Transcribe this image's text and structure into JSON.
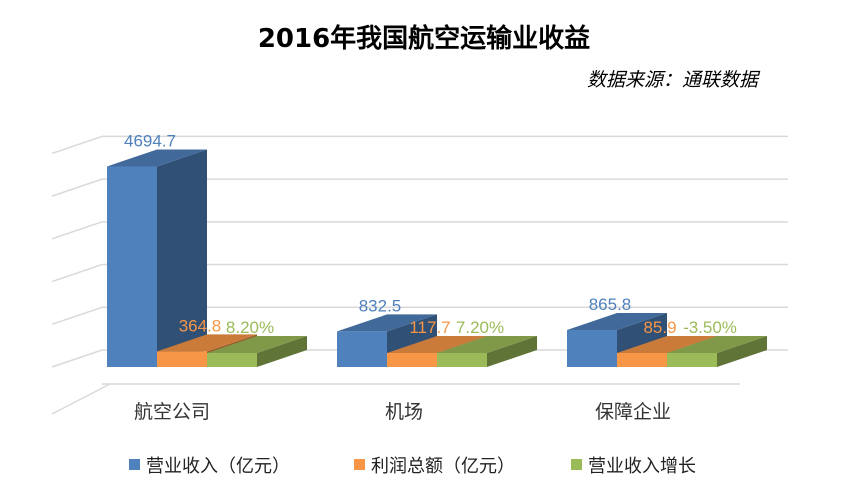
{
  "chart_data": {
    "type": "bar",
    "title": "2016年我国航空运输业收益",
    "source": "数据来源：通联数据",
    "categories": [
      "航空公司",
      "机场",
      "保障企业"
    ],
    "series": [
      {
        "name": "营业收入（亿元）",
        "values": [
          4694.7,
          832.5,
          865.8
        ],
        "labels": [
          "4694.7",
          "832.5",
          "865.8"
        ],
        "color": "#4F81BD"
      },
      {
        "name": "利润总额（亿元）",
        "values": [
          364.8,
          117.7,
          85.9
        ],
        "labels": [
          "364.8",
          "117.7",
          "85.9"
        ],
        "color": "#F79646"
      },
      {
        "name": "营业收入增长",
        "values": [
          8.2,
          7.2,
          -3.5
        ],
        "labels": [
          "8.20%",
          "7.20%",
          "-3.50%"
        ],
        "color": "#9BBB59"
      }
    ],
    "style": "3d-clustered-column",
    "grid": true,
    "legend_position": "bottom"
  }
}
